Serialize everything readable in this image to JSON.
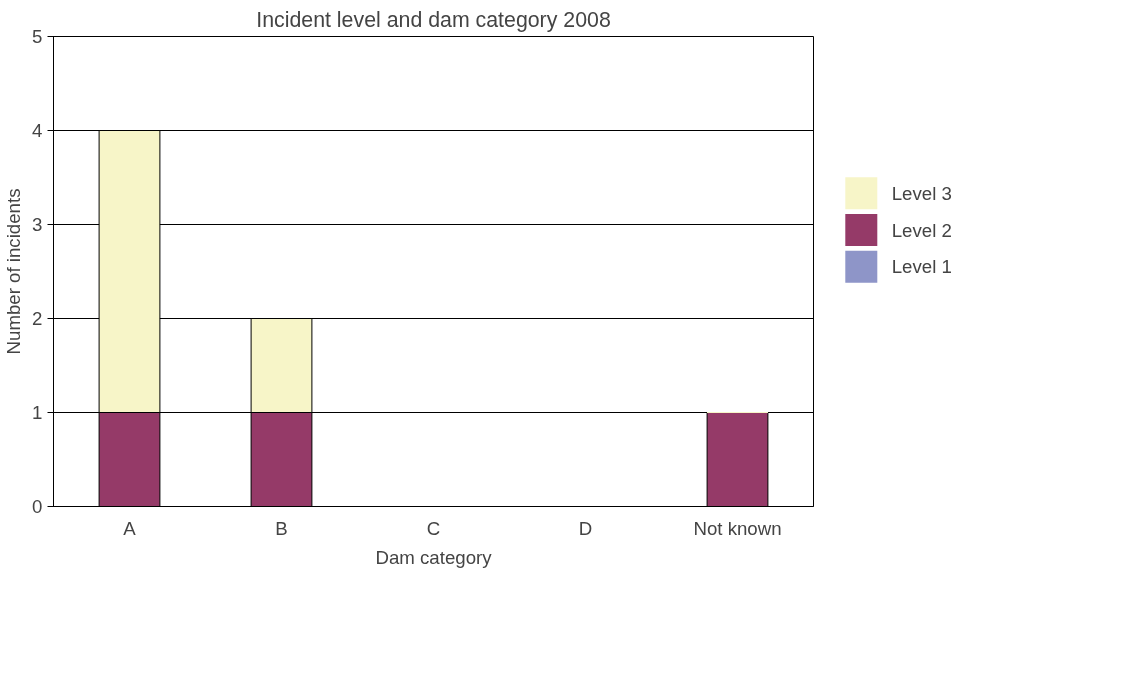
{
  "chart_data": {
    "type": "bar",
    "title": "Incident level and dam category 2008",
    "xlabel": "Dam category",
    "ylabel": "Number of incidents",
    "categories": [
      "A",
      "B",
      "C",
      "D",
      "Not known"
    ],
    "stacked": true,
    "series": [
      {
        "name": "Level 1",
        "color": "#8e95c8",
        "values": [
          0,
          0,
          0,
          0,
          0
        ]
      },
      {
        "name": "Level 2",
        "color": "#953a68",
        "values": [
          1,
          1,
          0,
          0,
          1
        ]
      },
      {
        "name": "Level 3",
        "color": "#f7f5c8",
        "values": [
          3,
          1,
          0,
          0,
          0
        ]
      }
    ],
    "ylim": [
      0,
      5
    ],
    "yticks": [
      0,
      1,
      2,
      3,
      4,
      5
    ],
    "grid": "y",
    "legend": "right"
  }
}
